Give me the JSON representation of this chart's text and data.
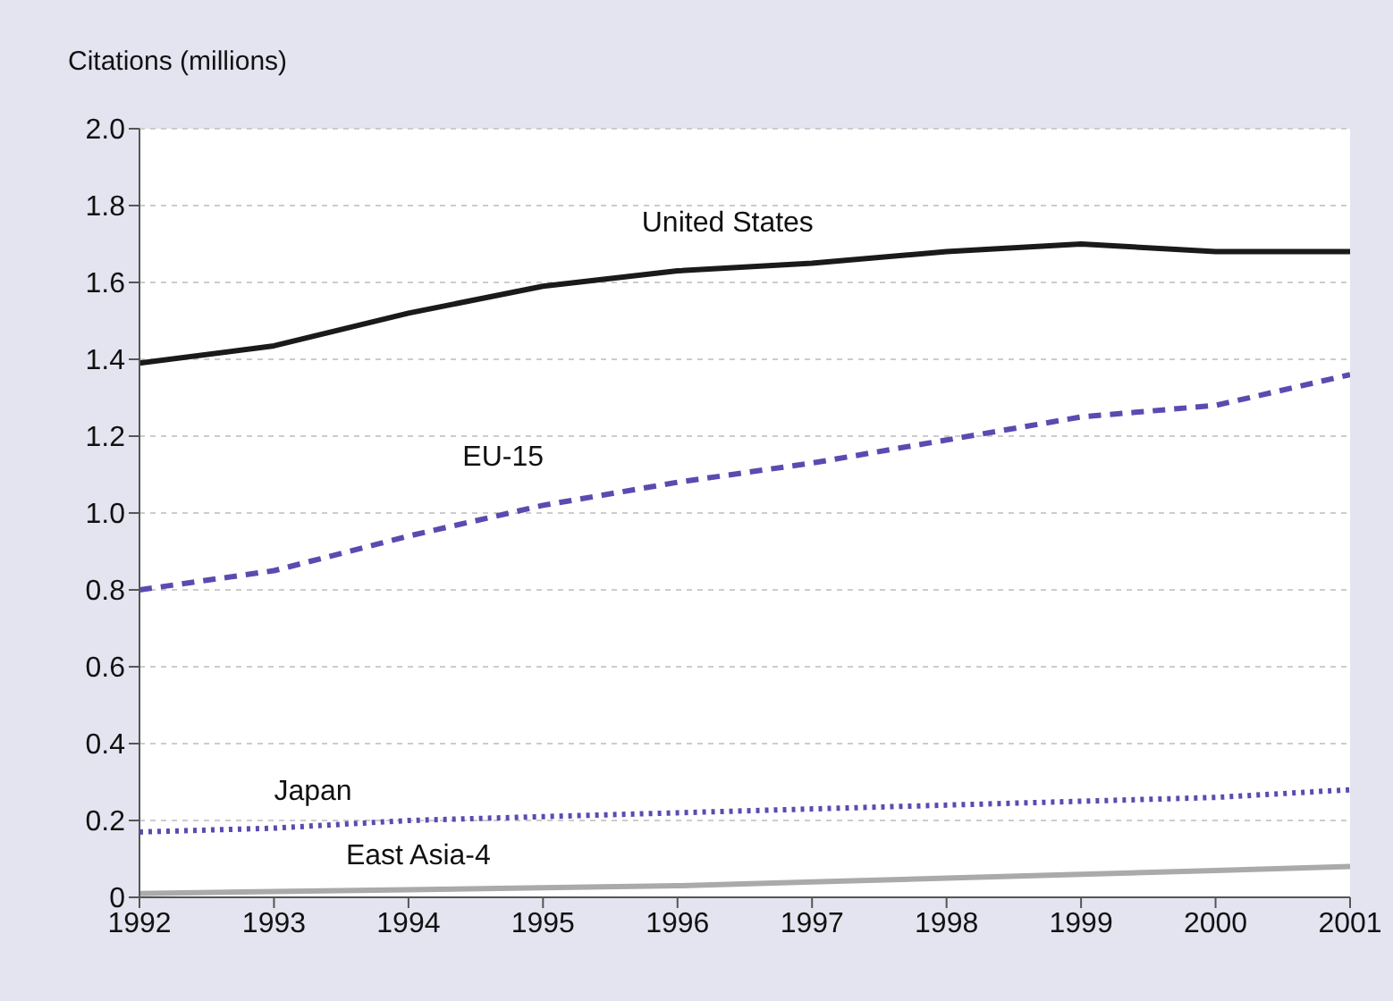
{
  "chart_data": {
    "type": "line",
    "ylabel": "Citations (millions)",
    "x": [
      1992,
      1993,
      1994,
      1995,
      1996,
      1997,
      1998,
      1999,
      2000,
      2001
    ],
    "xlim": [
      1992,
      2001
    ],
    "xticks": [
      1992,
      1993,
      1994,
      1995,
      1996,
      1997,
      1998,
      1999,
      2000,
      2001
    ],
    "ylim": [
      0,
      2
    ],
    "yticks": [
      0,
      {
        "value": 0.2,
        "label": "0.2"
      },
      {
        "value": 0.4,
        "label": "0.4"
      },
      {
        "value": 0.6,
        "label": "0.6"
      },
      {
        "value": 0.8,
        "label": "0.8"
      },
      {
        "value": 1,
        "label": "1.0"
      },
      {
        "value": 1.2,
        "label": "1.2"
      },
      {
        "value": 1.4,
        "label": "1.4"
      },
      {
        "value": 1.6,
        "label": "1.6"
      },
      {
        "value": 1.8,
        "label": "1.8"
      },
      {
        "value": 2,
        "label": "2.0"
      }
    ],
    "grid": "y",
    "legend": false,
    "marker": "none",
    "series": [
      {
        "name": "United States",
        "color": "#1a1a1a",
        "line_style": "solid",
        "values": [
          1.39,
          1.435,
          1.52,
          1.59,
          1.63,
          1.65,
          1.68,
          1.7,
          1.68,
          1.68
        ]
      },
      {
        "name": "EU-15",
        "color": "#5a4bb0",
        "line_style": "dashed",
        "values": [
          0.8,
          0.85,
          0.94,
          1.02,
          1.08,
          1.13,
          1.19,
          1.25,
          1.28,
          1.36
        ]
      },
      {
        "name": "Japan",
        "color": "#5a4bb0",
        "line_style": "dotted",
        "values": [
          0.17,
          0.18,
          0.2,
          0.21,
          0.22,
          0.23,
          0.24,
          0.25,
          0.26,
          0.28
        ]
      },
      {
        "name": "East Asia-4",
        "color": "#aaaaaa",
        "line_style": "solid",
        "values": [
          0.01,
          0.015,
          0.02,
          0.025,
          0.03,
          0.04,
          0.05,
          0.06,
          0.07,
          0.08
        ]
      }
    ]
  }
}
